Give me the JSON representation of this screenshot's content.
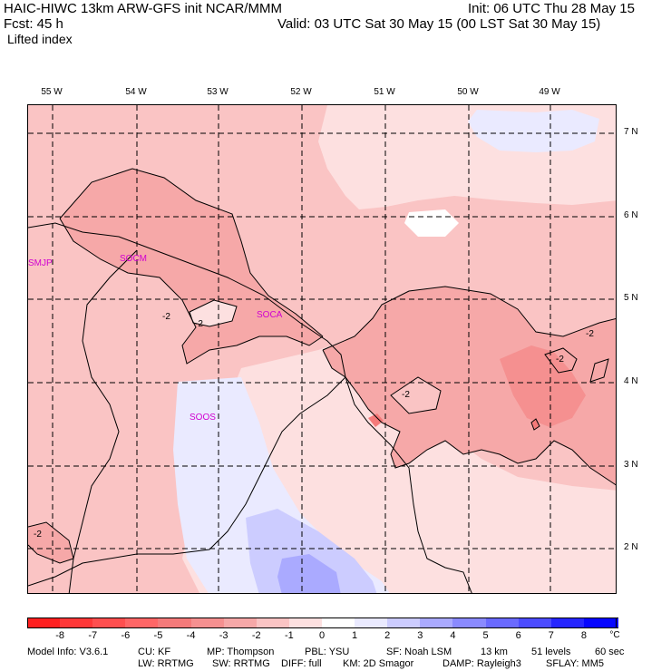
{
  "header": {
    "model_line": "HAIC-HIWC 13km ARW-GFS init   NCAR/MMM",
    "init_line": "Init: 06 UTC Thu 28 May 15",
    "fcst_line": "Fcst:   45 h",
    "valid_line": "Valid: 03 UTC Sat 30 May 15 (00 LST Sat 30 May 15)",
    "field_name": "Lifted index"
  },
  "map": {
    "lon_labels": [
      "55 W",
      "54 W",
      "53 W",
      "52 W",
      "51 W",
      "50 W",
      "49 W"
    ],
    "lat_labels": [
      "7 N",
      "6 N",
      "5 N",
      "4 N",
      "3 N",
      "2 N"
    ],
    "stations": [
      "SMJP",
      "SOCM",
      "SOCA",
      "SOOS"
    ],
    "contour_labels": [
      "-2",
      "-2",
      "-2",
      "-2",
      "-2",
      "-2"
    ]
  },
  "colorbar": {
    "colors": [
      "#ff2020",
      "#ff3838",
      "#ff4f4f",
      "#ff6666",
      "#f47a7a",
      "#f59090",
      "#f6a8a8",
      "#fac4c4",
      "#fde0e0",
      "#ffffff",
      "#eaeaff",
      "#ccccff",
      "#aaaaff",
      "#8a8aff",
      "#6a6aff",
      "#4c4cff",
      "#2626ff",
      "#0606ff"
    ],
    "ticks": [
      "-8",
      "-7",
      "-6",
      "-5",
      "-4",
      "-3",
      "-2",
      "-1",
      "0",
      "1",
      "2",
      "3",
      "4",
      "5",
      "6",
      "7",
      "8"
    ],
    "unit": "°C"
  },
  "footer": {
    "line1": [
      "Model Info: V3.6.1",
      "CU: KF",
      "MP: Thompson",
      "PBL: YSU",
      "SF: Noah LSM",
      "13 km",
      "51 levels",
      "60 sec"
    ],
    "line2": [
      "LW: RRTMG",
      "SW: RRTMG",
      "DIFF: full",
      "KM: 2D Smagor",
      "DAMP: Rayleigh3",
      "SFLAY: MM5"
    ]
  }
}
